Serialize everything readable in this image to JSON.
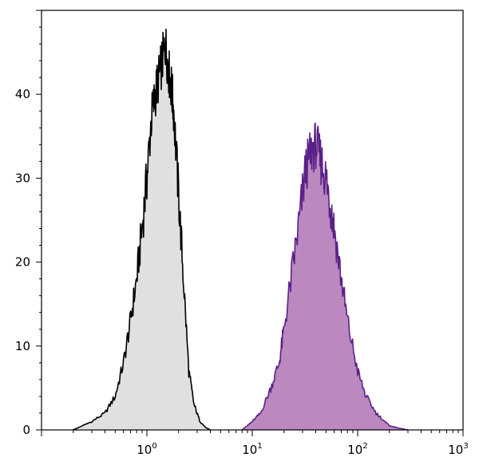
{
  "chart_data": {
    "type": "area",
    "title": "",
    "xlabel": "",
    "ylabel": "",
    "x_scale": "log",
    "xlim": [
      0.1,
      1000
    ],
    "ylim": [
      0,
      50
    ],
    "grid": false,
    "legend": "none",
    "x_ticks": [
      {
        "value": 1,
        "base": "10",
        "exp": "0"
      },
      {
        "value": 10,
        "base": "10",
        "exp": "1"
      },
      {
        "value": 100,
        "base": "10",
        "exp": "2"
      },
      {
        "value": 1000,
        "base": "10",
        "exp": "3"
      }
    ],
    "y_ticks": [
      {
        "value": 0,
        "label": "0"
      },
      {
        "value": 10,
        "label": "10"
      },
      {
        "value": 20,
        "label": "20"
      },
      {
        "value": 30,
        "label": "30"
      },
      {
        "value": 40,
        "label": "40"
      }
    ],
    "series": [
      {
        "fill": "#e0e0e0",
        "stroke": "#000000",
        "x": [
          0.2,
          0.3,
          0.4,
          0.5,
          0.6,
          0.7,
          0.8,
          0.9,
          1.0,
          1.1,
          1.2,
          1.3,
          1.4,
          1.5,
          1.6,
          1.7,
          1.8,
          2.0,
          2.2,
          2.5,
          2.8,
          3.2,
          3.6,
          4.0
        ],
        "values": [
          0,
          1,
          2,
          4,
          8,
          13,
          18,
          24,
          30,
          37,
          40,
          42,
          44,
          46,
          43,
          41,
          38,
          28,
          19,
          7,
          3,
          1,
          0.3,
          0
        ]
      },
      {
        "fill": "#bb88c0",
        "stroke": "#5b2188",
        "x": [
          8,
          10,
          12,
          15,
          18,
          20,
          24,
          28,
          32,
          36,
          40,
          45,
          50,
          55,
          60,
          70,
          80,
          100,
          120,
          150,
          200,
          250,
          300
        ],
        "values": [
          0,
          1,
          2,
          5,
          8,
          12,
          19,
          25,
          31,
          33,
          34,
          32,
          30,
          27,
          24,
          18,
          13,
          7,
          4,
          2,
          0.5,
          0.2,
          0
        ]
      }
    ]
  }
}
